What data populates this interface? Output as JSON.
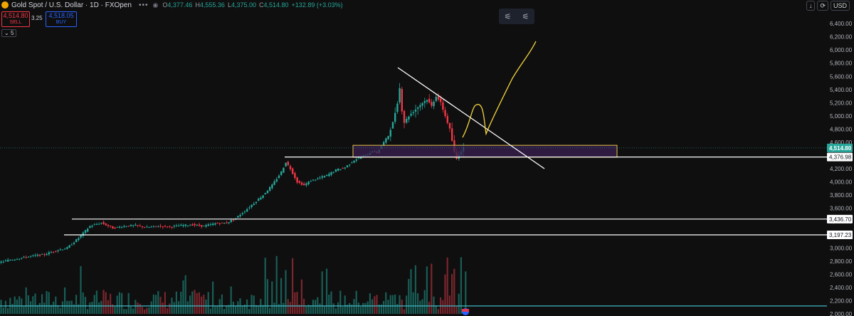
{
  "header": {
    "title": "Gold Spot / U.S. Dollar · 1D · FXOpen",
    "o_key": "O",
    "o_val": "4,377.46",
    "h_key": "H",
    "h_val": "4,555.36",
    "l_key": "L",
    "l_val": "4,375.00",
    "c_key": "C",
    "c_val": "4,514.80",
    "change": "+132.89 (+3.03%)",
    "dots": "•••"
  },
  "trade": {
    "sell_price": "4,514.80",
    "sell_label": "SELL",
    "spread": "3.25",
    "buy_price": "4,518.05",
    "buy_label": "BUY",
    "collapse_count": "5"
  },
  "top_right": {
    "down_label": "↓",
    "refresh_label": "⟳",
    "currency": "USD"
  },
  "colors": {
    "up": "#26a69a",
    "down": "#f23645",
    "background": "#0f0f0f",
    "zone_fill": "#3a2050",
    "zone_border": "#e8c44a",
    "projection": "#f5d63d",
    "trendline": "#ffffff"
  },
  "chart_data": {
    "type": "candlestick",
    "symbol": "XAUUSD",
    "timeframe": "1D",
    "ylim": [
      1950,
      6500
    ],
    "y_ticks": [
      2000,
      2200,
      2400,
      2600,
      2800,
      3000,
      3200,
      3400,
      3600,
      3800,
      4000,
      4200,
      4400,
      4600,
      4800,
      5000,
      5200,
      5400,
      5600,
      5800,
      6000,
      6200,
      6400
    ],
    "y_tick_labels": [
      "2,000.00",
      "2,200.00",
      "2,400.00",
      "2,600.00",
      "2,800.00",
      "3,000.00",
      "3,200.00",
      "3,400.00",
      "3,600.00",
      "3,800.00",
      "4,000.00",
      "4,200.00",
      "4,400.00",
      "4,600.00",
      "4,800.00",
      "5,000.00",
      "5,200.00",
      "5,400.00",
      "5,600.00",
      "5,800.00",
      "6,000.00",
      "6,200.00",
      "6,400.00"
    ],
    "price_path": [
      [
        0,
        2780
      ],
      [
        5,
        2820
      ],
      [
        10,
        2850
      ],
      [
        15,
        2880
      ],
      [
        20,
        2900
      ],
      [
        25,
        2960
      ],
      [
        30,
        3000
      ],
      [
        35,
        3150
      ],
      [
        40,
        3330
      ],
      [
        45,
        3380
      ],
      [
        50,
        3300
      ],
      [
        55,
        3330
      ],
      [
        60,
        3340
      ],
      [
        65,
        3310
      ],
      [
        70,
        3330
      ],
      [
        75,
        3320
      ],
      [
        80,
        3340
      ],
      [
        85,
        3350
      ],
      [
        90,
        3330
      ],
      [
        95,
        3370
      ],
      [
        100,
        3380
      ],
      [
        104,
        3450
      ],
      [
        108,
        3560
      ],
      [
        112,
        3680
      ],
      [
        116,
        3800
      ],
      [
        120,
        3950
      ],
      [
        124,
        4150
      ],
      [
        126,
        4300
      ],
      [
        128,
        4200
      ],
      [
        131,
        4000
      ],
      [
        134,
        3950
      ],
      [
        137,
        4020
      ],
      [
        140,
        4050
      ],
      [
        144,
        4100
      ],
      [
        148,
        4180
      ],
      [
        152,
        4220
      ],
      [
        156,
        4330
      ],
      [
        159,
        4380
      ],
      [
        162,
        4420
      ],
      [
        164,
        4470
      ],
      [
        166,
        4440
      ],
      [
        168,
        4550
      ],
      [
        171,
        4700
      ],
      [
        173,
        4900
      ],
      [
        175,
        5200
      ],
      [
        176,
        5420
      ],
      [
        177,
        5080
      ],
      [
        178,
        4900
      ],
      [
        180,
        5000
      ],
      [
        183,
        5100
      ],
      [
        186,
        5200
      ],
      [
        188,
        5250
      ],
      [
        190,
        5150
      ],
      [
        192,
        5300
      ],
      [
        194,
        5200
      ],
      [
        196,
        5000
      ],
      [
        198,
        4800
      ],
      [
        200,
        4450
      ],
      [
        201,
        4350
      ],
      [
        202,
        4420
      ],
      [
        204,
        4514.8
      ]
    ],
    "lines": [
      {
        "name": "resistance-trendline",
        "from": [
          176,
          5600
        ],
        "to": [
          235,
          4390
        ]
      },
      {
        "name": "level-4376",
        "y": 4376.98,
        "from_x": 125
      },
      {
        "name": "level-3436",
        "y": 3436.7,
        "from_x": 31
      },
      {
        "name": "level-3197",
        "y": 3197.23,
        "from_x": 28
      },
      {
        "name": "level-2120",
        "y": 2120,
        "from_x": 0
      }
    ],
    "zone": {
      "x": [
        155,
        265
      ],
      "y": [
        4375,
        4555
      ]
    },
    "projection": [
      [
        202,
        4620
      ],
      [
        205,
        5000
      ],
      [
        210,
        5100
      ],
      [
        214,
        4870
      ],
      [
        218,
        5100
      ],
      [
        222,
        5450
      ],
      [
        228,
        5800
      ],
      [
        233,
        6000
      ]
    ],
    "price_labels": [
      {
        "value": "4,514.80",
        "y": 4514.8,
        "kind": "current"
      },
      {
        "value": "4,376.98",
        "y": 4376.98,
        "kind": "level"
      },
      {
        "value": "3,436.70",
        "y": 3436.7,
        "kind": "level"
      },
      {
        "value": "3,197.23",
        "y": 3197.23,
        "kind": "level"
      }
    ]
  }
}
